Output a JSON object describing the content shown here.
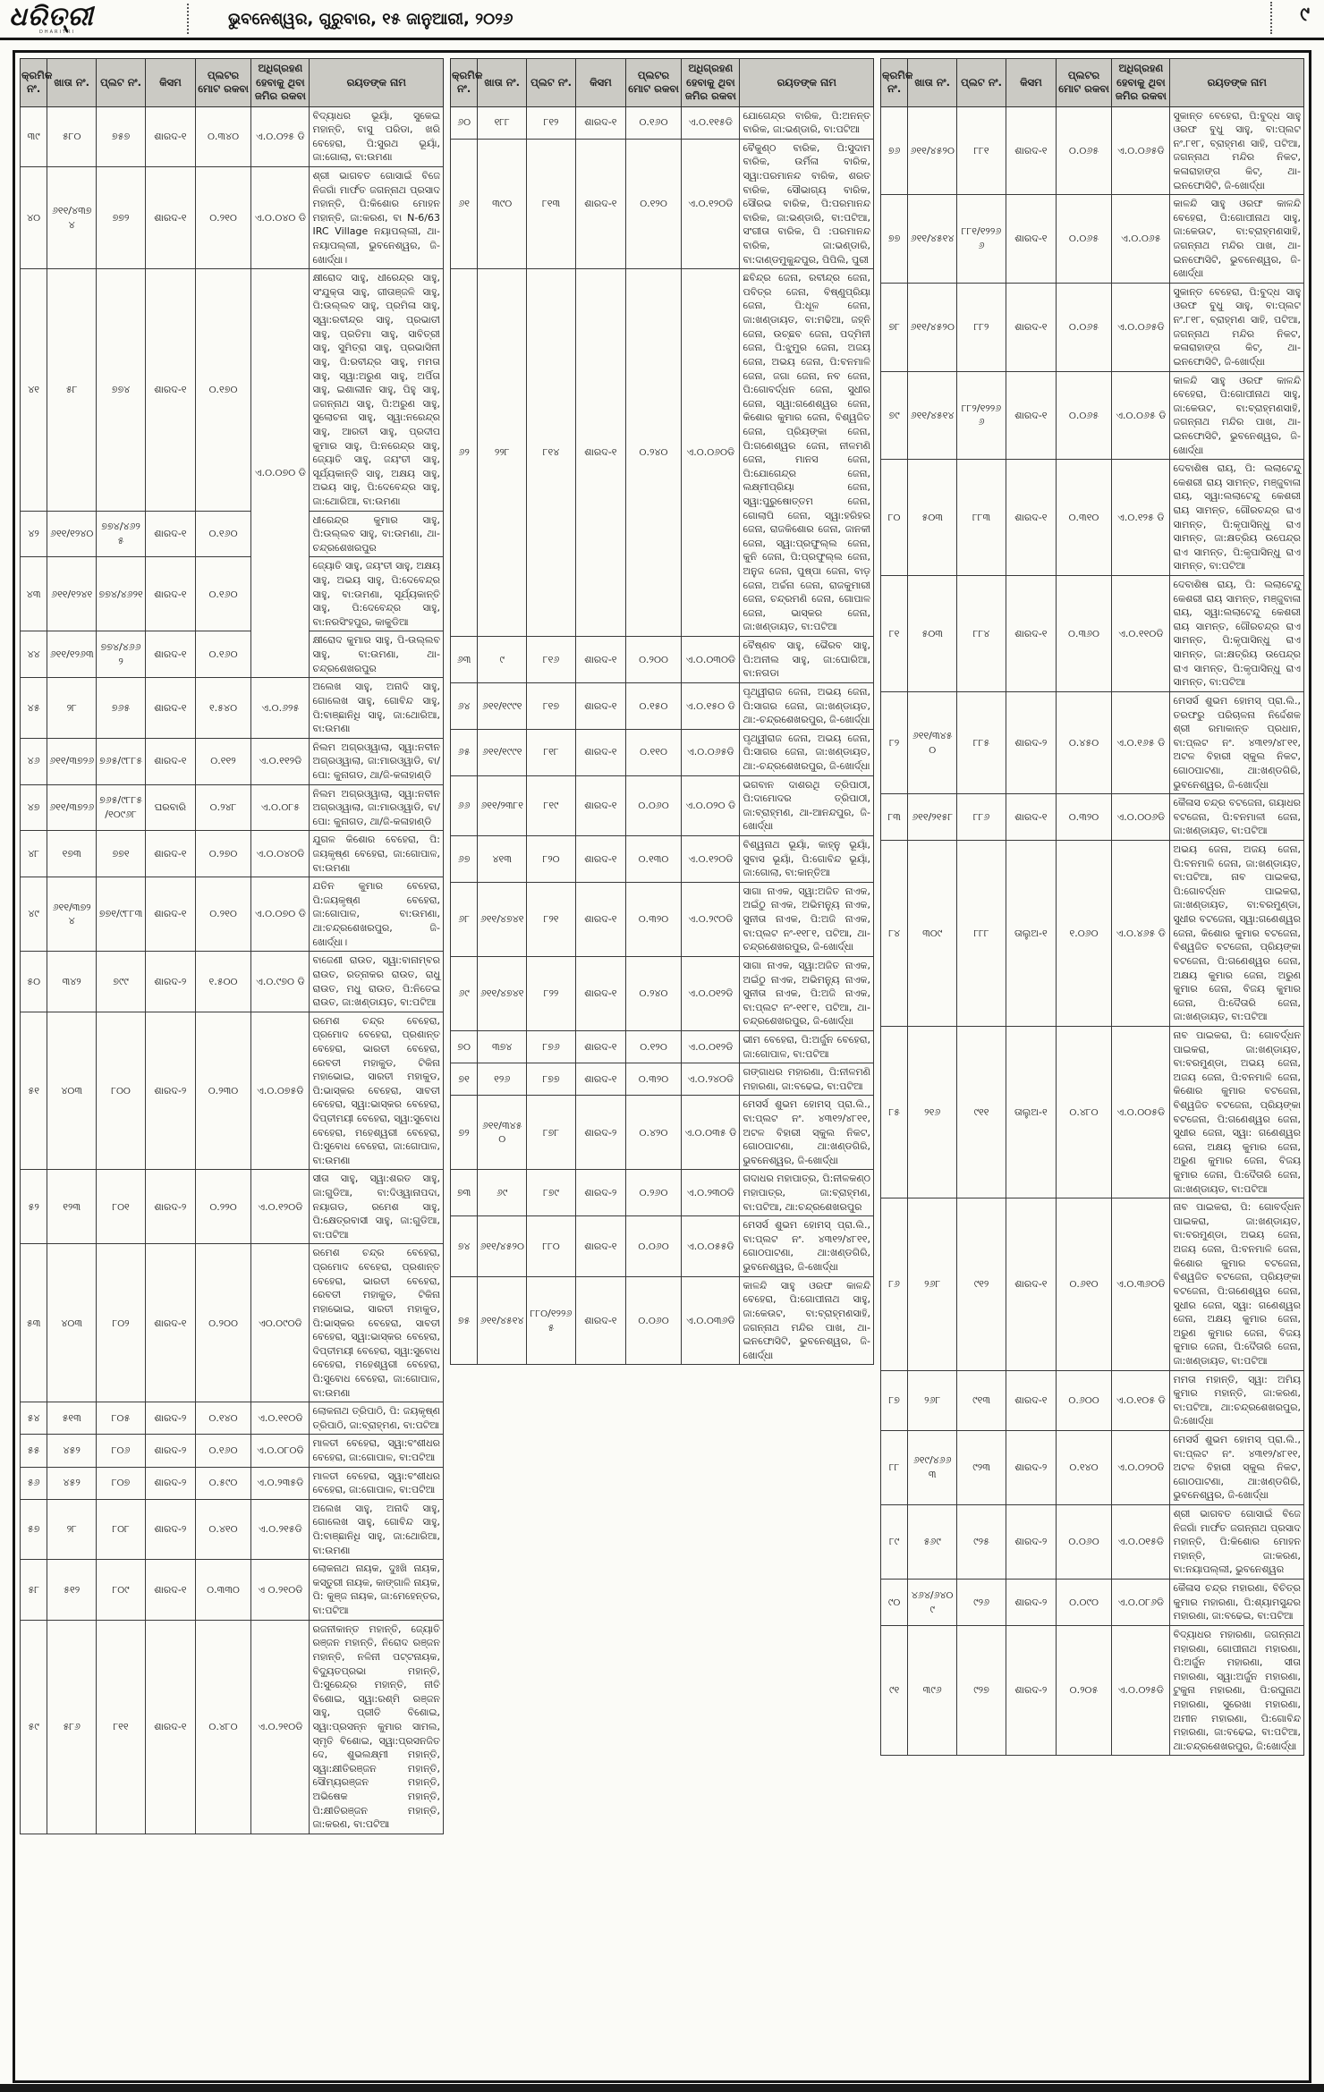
{
  "masthead": {
    "logo": "ଧରିତ୍ରୀ",
    "logo_subtitle": "DHARITRI",
    "dateline": "ଭୁବନେଶ୍ୱର, ଗୁରୁବାର, ୧୫ ଜାନୁଆରୀ, ୨୦୨୬",
    "page_number": "୯"
  },
  "notice_table": {
    "headers": [
      "କ୍ରମିକ ନଂ.",
      "ଖାତା ନଂ.",
      "ପ୍ଲଟ ନଂ.",
      "କିସମ",
      "ପ୍ଲଟର ମୋଟ ରକବା",
      "ଅଧିଗ୍ରହଣ ହେବାକୁ ଥିବା ଜମିର ରକବା",
      "ରୟତଙ୍କ ନାମ"
    ],
    "columns": [
      {
        "rows": [
          {
            "sl": "୩୯",
            "khata": "୫୮୦",
            "plot": "୭୫୭",
            "kisam": "ଶାରଦ-୧",
            "area": "୦.୩୪୦",
            "acq": "ଏ.୦.୦୨୫ ଡି",
            "name": "ବିଦ୍ୟାଧର ଭୂୟାଁ, ସୁକେଇ ମହାନ୍ତି, ବାସୁ ପରିଡା, ଖରି ବେହେରା, ପି:ସୁରଥ ଭୂୟାଁ, ଜା:ଗୋଲା, ବା:ଉମଣା"
          },
          {
            "sl": "୪୦",
            "khata": "୬୧୧/୪୩୭୪",
            "plot": "୭୭୨",
            "kisam": "ଶାରଦ-୧",
            "area": "୦.୨୧୦",
            "acq": "ଏ.୦.୦୪୦ ଡି",
            "name": "ଶ୍ରୀ ଭାଗବତ ଗୋସାଇଁ ବିଜେ ନିଜଗାଁ ମାର୍ଫତ ଜଗନ୍ନାଥ ପ୍ରସାଦ ମହାନ୍ତି, ପି:କିଶୋର ମୋହନ ମହାନ୍ତି, ଜା:କରଣ, ବା N-6/63 IRC Village ନୟାପଲ୍ଲୀ, ଥା-ନୟାପଲ୍ଲୀ, ଭୁବନେଶ୍ୱର, ଜି-ଖୋର୍ଦ୍ଧା।"
          },
          {
            "sl": "୪୧",
            "khata": "୫୮",
            "plot": "୭୭୪",
            "kisam": "ଶାରଦ-୧",
            "area": "୦.୧୭୦",
            "acq": "ଏ.୦.୦୭୦ ଡି",
            "acq_rowspan": 4,
            "name": "କ୍ଷୀରୋଦ ସାହୁ, ଧୀରେନ୍ଦ୍ର ସାହୁ, ସଂଯୁକ୍ତା ସାହୁ, ଗୀତାଞ୍ଜଳି ସାହୁ, ପି:ଉଲ୍ଲବ ସାହୁ, ପ୍ରମିଳା ସାହୁ, ସ୍ୱା:ରବୀନ୍ଦ୍ର ସାହୁ, ପ୍ରଭାତୀ ସାହୁ, ପ୍ରତିମା ସାହୁ, ସାବିତ୍ରୀ ସାହୁ, ସୁମିତ୍ରା ସାହୁ, ପ୍ରଭାସିନୀ ସାହୁ, ପି:ରବୀନ୍ଦ୍ର ସାହୁ, ମମତା ସାହୁ, ସ୍ୱା:ଅରୁଣ ସାହୁ, ଅର୍ପିତା ସାହୁ, ଇଶାଲୀନ ସାହୁ, ପିହୁ ସାହୁ, ଜଗନ୍ନାଥ ସାହୁ, ପି:ଅରୁଣ ସାହୁ, ସୁଲୋଚନା ସାହୁ, ସ୍ୱା:ନରେନ୍ଦ୍ର ସାହୁ, ଆରତୀ ସାହୁ, ପ୍ରଦୀପ କୁମାର ସାହୁ, ପି:ନରେନ୍ଦ୍ର ସାହୁ, ଜ୍ୟୋତି ସାହୁ, ଜୟଂତୀ ସାହୁ, ସୂର୍ଯ୍ୟକାନ୍ତି ସାହୁ, ଅକ୍ଷୟ ସାହୁ, ଅଭୟ ସାହୁ, ପି:ଦେବେନ୍ଦ୍ର ସାହୁ, ଜା:ଥୋରିଆ, ବା:ଉମଣା"
          },
          {
            "sl": "୪୨",
            "khata": "୬୧୧/୧୨୪୦",
            "plot": "୭୭୪/୪୬୨୫",
            "kisam": "ଶାରଦ-୧",
            "area": "୦.୧୬୦",
            "acq": null,
            "name": "ଧୀରେନ୍ଦ୍ର କୁମାର ସାହୁ, ପି:ଉଲ୍ଲବ ସାହୁ, ବା:ଉମଣା, ଥା-ଚନ୍ଦ୍ରଶେଖରପୁର"
          },
          {
            "sl": "୪୩",
            "khata": "୬୧୧/୧୨୪୧",
            "plot": "୭୭୪/୪୬୨୧",
            "kisam": "ଶାରଦ-୧",
            "area": "୦.୧୬୦",
            "acq": null,
            "name": "ଜ୍ୟୋତି ସାହୁ, ଜୟଂତୀ ସାହୁ, ଅକ୍ଷୟ ସାହୁ, ଅଭୟ ସାହୁ, ପି:ଦେବେନ୍ଦ୍ର ସାହୁ, ବା:ଉମଣା, ସୂର୍ଯ୍ୟକାନ୍ତି ସାହୁ, ପି:ଦେବେନ୍ଦ୍ର ସାହୁ, ବା:ନରସିଂହପୁର, କାକୁଡିଆ"
          },
          {
            "sl": "୪୪",
            "khata": "୬୧୧/୧୨୬୩",
            "plot": "୭୭୪/୪୬୬୨",
            "kisam": "ଶାରଦ-୧",
            "area": "୦.୧୬୦",
            "acq": null,
            "name": "କ୍ଷୀରୋଦ କୁମାର ସାହୁ, ପି-ଉଲ୍ଲବ ସାହୁ, ବା:ଉମଣା, ଥା-ଚନ୍ଦ୍ରଶେଖରପୁର"
          },
          {
            "sl": "୪୫",
            "khata": "୨୮",
            "plot": "୭୬୫",
            "kisam": "ଶାରଦ-୧",
            "area": "୧.୫୪୦",
            "acq": "ଏ.୦.୬୨୫",
            "name": "ଅଲେଖ ସାହୁ, ଅନାଦି ସାହୁ, ଗୋଲେଖ ସାହୁ, ଗୋବିନ୍ଦ ସାହୁ, ପି:ବାଞ୍ଛାନିଧି ସାହୁ, ଜା:ଥୋରିଆ, ବା:ଉମଣା"
          },
          {
            "sl": "୪୬",
            "khata": "୬୧୧/୩୭୨୬",
            "plot": "୭୬୫/୯୮୮୫",
            "kisam": "ଶାରଦ-୧",
            "area": "୦.୧୧୨",
            "acq": "ଏ.୦.୧୧୨ଡି",
            "name": "ନିଲମ ଅଗ୍ରଓ୍ୱାଲା, ସ୍ୱା:ନବୀନ ଅଗ୍ରଓ୍ୱାଲା, ଜା:ମାରଓ୍ୱାଡି, ବା/ପୋ: କୁନାଗଡ, ଥା/ଜି-କଳାହାଣ୍ଡି"
          },
          {
            "sl": "୪୭",
            "khata": "୬୧୧/୩୭୨୬",
            "plot": "୭୬୫/୯୮୮୫/୧୦୯୬୮",
            "kisam": "ଘରବାରି",
            "area": "୦.୨୪୮",
            "acq": "ଏ.୦.୦୮୫",
            "name": "ନିଲମ ଅଗ୍ରଓ୍ୱାଲା, ସ୍ୱା:ନବୀନ ଅଗ୍ରଓ୍ୱାଲା, ଜା:ମାରଓ୍ୱାଡି, ବା/ପୋ: କୁନାଗଡ, ଥା/ଜି-କଳାହାଣ୍ଡି"
          },
          {
            "sl": "୪୮",
            "khata": "୧୭୩",
            "plot": "୭୭୧",
            "kisam": "ଶାରଦ-୧",
            "area": "୦.୨୭୦",
            "acq": "ଏ.୦.୦୪୦ଡି",
            "name": "ଯୁଗଳ କିଶୋର ବେହେରା, ପି: ଜୟକୃଷ୍ଣ ବେହେରା, ଜା:ଗୋପାଳ, ବା:ଉମଣା"
          },
          {
            "sl": "୪୯",
            "khata": "୬୧୧/୩୭୨୪",
            "plot": "୭୭୧/୯୮୮୩",
            "kisam": "ଶାରଦ-୧",
            "area": "୦.୨୧୦",
            "acq": "ଏ.୦.୦୭୦ ଡି",
            "name": "ଯତିନ କୁମାର ବେହେରା, ପି:ଜୟକୃଷ୍ଣ ବେହେରା, ଜା:ଗୋପାଳ, ବା:ଉମଣା, ଥା:ଚନ୍ଦ୍ରଶେଖରପୁର, ଜି-ଖୋର୍ଦ୍ଧା।"
          },
          {
            "sl": "୫୦",
            "khata": "୩୪୨",
            "plot": "୭୯୯",
            "kisam": "ଶାରଦ-୨",
            "area": "୧.୫୦୦",
            "acq": "ଏ.୦.୯୭୦ ଡି",
            "name": "ବାଜେଣୀ ରାଉତ, ସ୍ୱା:ବାନାମ୍ବର ରାଉତ, ରତ୍ନାକର ରାଉତ, ରାଧୁ ରାଉତ, ମଧୁ ରାଉତ, ପି:ନିତେଇ ରାଉତ, ଜା:ଖଣ୍ଡାୟତ, ବା:ପଟିଆ"
          },
          {
            "sl": "୫୧",
            "khata": "୪୦୩",
            "plot": "୮୦୦",
            "kisam": "ଶାରଦ-୨",
            "area": "୦.୨୩୦",
            "acq": "ଏ.୦.୦୭୫ଡି",
            "name": "ରମେଶ ଚନ୍ଦ୍ର ବେହେରା, ପ୍ରମୋଦ ବେହେରା, ପ୍ରଶାନ୍ତ ବେହେରା, ଭାରତୀ ବେହେରା, ରେବତୀ ମହାକୁଡ, ଟିକିନା ମହାଭୋଇ, ସାରତୀ ମହାକୁଡ, ପି:ଭାସ୍କର ବେହେରା, ସାବତୀ ବେହେରା, ସ୍ୱା:ଭାସ୍କର ବେହେରା, ଦିପ୍ତୀମୟୀ ବେହେରା, ସ୍ୱା:ସୁବୋଧ ବେହେରା, ମହେଶ୍ୱରୀ ବେହେରା, ପି:ସୁବୋଧ ବେହେରା, ଜା:ଗୋପାଳ, ବା:ଉମଣା"
          },
          {
            "sl": "୫୨",
            "khata": "୧୨୩",
            "plot": "୮୦୧",
            "kisam": "ଶାରଦ-୨",
            "area": "୦.୨୨୦",
            "acq": "ଏ.୦.୧୨୦ଡି",
            "name": "ସୀତା ସାହୁ, ସ୍ୱା:ଶରତ ସାହୁ, ଜା:ଗୁଡିଆ, ବା:ଦିଓ୍ୱାନାପଦା, ନୟାଗଡ, ରମେଶ ସାହୁ, ପି:କ୍ଷେତ୍ରବାସୀ ସାହୁ, ଜା:ଗୁଡିଆ, ବା:ପଟିଆ"
          },
          {
            "sl": "୫୩",
            "khata": "୪୦୩",
            "plot": "୮୦୨",
            "kisam": "ଶାରଦ-୧",
            "area": "୦.୨୦୦",
            "acq": "ଏ୦.୦୯୦ଡି",
            "name": "ରମେଶ ଚନ୍ଦ୍ର ବେହେରା, ପ୍ରମୋଦ ବେହେରା, ପ୍ରଶାନ୍ତ ବେହେରା, ଭାରତୀ ବେହେରା, ରେବତୀ ମହାକୁଡ, ଟିକିନା ମହାଭୋଇ, ସାରତୀ ମହାକୁଡ, ପି:ଭାସ୍କର ବେହେରା, ସାବତୀ ବେହେରା, ସ୍ୱା:ଭାସ୍କର ବେହେରା, ଦିପ୍ତୀମୟୀ ବେହେରା, ସ୍ୱା:ସୁବୋଧ ବେହେରା, ମହେଶ୍ୱରୀ ବେହେରା, ପି:ସୁବୋଧ ବେହେରା, ଜା:ଗୋପାଳ, ବା:ଉମଣା"
          },
          {
            "sl": "୫୪",
            "khata": "୫୧୩",
            "plot": "୮୦୫",
            "kisam": "ଶାରଦ-୨",
            "area": "୦.୧୪୦",
            "acq": "ଏ.୦.୧୧୦ଡି",
            "name": "ଲୋକନାଥ ତ୍ରିପାଠି, ପି: ଜୟକୃଷ୍ଣ ତ୍ରିପାଠି, ଜା:ବ୍ରାହ୍ମଣ, ବା:ପଟିଆ"
          },
          {
            "sl": "୫୫",
            "khata": "୪୫୨",
            "plot": "୮୦୬",
            "kisam": "ଶାରଦ-୨",
            "area": "୦.୧୬୦",
            "acq": "ଏ.୦.୦୮୦ଡି",
            "name": "ମାଳତୀ ବେହେରା, ସ୍ୱା:ବଂଶୀଧର ବେହେରା, ଜା:ଗୋପାଳ, ବା:ପଟିଆ"
          },
          {
            "sl": "୫୬",
            "khata": "୪୫୨",
            "plot": "୮୦୭",
            "kisam": "ଶାରଦ-୨",
            "area": "୦.୫୯୦",
            "acq": "ଏ.୦.୨୩୫ଡି",
            "name": "ମାଳତୀ ବେହେରା, ସ୍ୱା:ବଂଶୀଧର ବେହେରା, ଜା:ଗୋପାଳ, ବା:ପଟିଆ"
          },
          {
            "sl": "୫୭",
            "khata": "୨୮",
            "plot": "୮୦୮",
            "kisam": "ଶାରଦ-୨",
            "area": "୦.୪୧୦",
            "acq": "ଏ.୦.୨୧୫ଡି",
            "name": "ଅଲେଖ ସାହୁ, ଅନାଦି ସାହୁ, ଗୋଲେଖ ସାହୁ, ଗୋବିନ୍ଦ ସାହୁ, ପି:ବାଞ୍ଛାନିଧି ସାହୁ, ଜା:ଥୋରିଆ, ବା:ଉମଣା"
          },
          {
            "sl": "୫୮",
            "khata": "୫୧୨",
            "plot": "୮୦୯",
            "kisam": "ଶାରଦ-୧",
            "area": "୦.୩୩୦",
            "acq": "ଏ ୦.୨୧୦ଡି",
            "name": "ଲୋକନାଥ ନାୟକ, ଦୁଃଖି ନାୟକ, କସ୍ତୁରୀ ନାୟକ, କାଙ୍ଗାଳି ନାୟକ, ପି: କୁଞ୍ଜ ନାୟକ, ଜା:ମେହେନ୍ତର, ବା:ପଟିଆ"
          },
          {
            "sl": "୫୯",
            "khata": "୫୮୬",
            "plot": "୮୧୧",
            "kisam": "ଶାରଦ-୧",
            "area": "୦.୪୮୦",
            "acq": "ଏ.୦.୨୧୦ଡି",
            "name": "ରଜନୀକାନ୍ତ ମହାନ୍ତି, ଜ୍ୟୋତି ରଞ୍ଜନ ମହାନ୍ତି, ନିରୋଦ ରଞ୍ଜନ ମହାନ୍ତି, ନଳିନୀ ପଟ୍ଟନାୟକ, ବିଦ୍ୟୁତପ୍ରଭା ମହାନ୍ତି, ପି:ସୁରେନ୍ଦ୍ର ମହାନ୍ତି, ନୀତି ବିଶୋଇ, ସ୍ୱା:ରଶ୍ମି ରଞ୍ଜନ ସାହୁ, ପ୍ରୀତି ବିଶୋଇ, ସ୍ୱା:ପ୍ରସନ୍ନ କୁମାର ସାମଲ, ସ୍ମୃତି ବିଶୋଇ, ସ୍ୱା:ପ୍ରସନଜିତ ଦେ, ଶୁଭଲକ୍ଷ୍ମୀ ମହାନ୍ତି, ସ୍ୱା:କ୍ଷୀତିରଞ୍ଜନ ମହାନ୍ତି, ସୌମ୍ୟରଞ୍ଜନ ମହାନ୍ତି, ଅଭିଷେକ ମହାନ୍ତି, ପି:କ୍ଷୀତିରଞ୍ଜନ ମହାନ୍ତି, ଜା:କରଣ, ବା:ପଟିଆ"
          }
        ]
      },
      {
        "rows": [
          {
            "sl": "୬୦",
            "khata": "୧୮୮",
            "plot": "୮୧୨",
            "kisam": "ଶାରଦ-୧",
            "area": "୦.୧୬୦",
            "acq": "ଏ.୦.୧୧୫ଡି",
            "name": "ଯୋଗେନ୍ଦ୍ର ବାରିକ, ପି:ଅନନ୍ତ ବାରିକ, ଜା:ଭଣ୍ଡାରି, ବା:ପଟିଆ"
          },
          {
            "sl": "୬୧",
            "khata": "୩୯୦",
            "plot": "୮୧୩",
            "kisam": "ଶାରଦ-୧",
            "area": "୦.୧୨୦",
            "acq": "ଏ.୦.୧୨୦ଡି",
            "name": "ବୈକୁଣ୍ଠ ବାରିକ, ପି:ସୁଦାମ ବାରିକ, ଉର୍ମିଳା ବାରିକ, ସ୍ୱା:ପରମାନନ୍ଦ ବାରିକ, ଶରତ ବାରିକ, ସୌଭାଗ୍ୟ ବାରିକ, ସୌରଭ ବାରିକ, ପି:ପରମାନନ୍ଦ ବାରିକ, ଜା:ଭଣ୍ଡାରି, ବା:ପଟିଆ, ସଂଗୀତା ବାରିକ, ପି :ପରମାନନ୍ଦ ବାରିକ, ଜା:ଭଣ୍ଡାରି, ବା:ଦାଣ୍ଡମୁକୁନ୍ଦପୁର, ପିପିଲି, ପୁରୀ"
          },
          {
            "sl": "୬୨",
            "khata": "୨୨୮",
            "plot": "୮୧୪",
            "kisam": "ଶାରଦ-୧",
            "area": "୦.୨୪୦",
            "acq": "ଏ.୦.୦୬୦ଡି",
            "name": "ଛବିନ୍ଦ୍ର ଜେନା, ରବୀନ୍ଦ୍ର ଜେନା, ପବିତ୍ର ଜେନା, ବିଷ୍ଣୁପ୍ରିୟା ଜେନା, ପି:ଧୂଳ ଜେନା, ଜା:ଖଣ୍ଡାୟତ, ବା:ମଢିଆ, ଜହ୍ନି ଜେନା, ଉଚ୍ଛବ ଜେନା, ପଦ୍ମିନୀ ଜେନା, ପି:ଝୁମୁର ଜେନା, ଅଜୟ ଜେନା, ଅଭୟ ଜେନା, ପି:ବନମାଳି ଜେନା, ଜଗା ଜେନା, ନବ ଜେନା, ପି:ଗୋବର୍ଦ୍ଧନ ଜେନା, ସୁଧୀର ଜେନା, ସ୍ୱା:ଗଣେଶ୍ୱର ଜେନା, କିଶୋର କୁମାର ଜେନା, ବିଶ୍ୱଜିତ ଜେନା, ପ୍ରିୟଙ୍କା ଜେନା, ପି:ଗଣେଶ୍ୱର ଜେନା, ନୀଳମଣି ଜେନା, ମାନସ ଜେନା, ପି:ଯୋଗେନ୍ଦ୍ର ଜେନା, ଲକ୍ଷ୍ମୀପ୍ରିୟା ଜେନା, ସ୍ୱା:ପୁରୁଷୋତ୍ତମ ଜେନା, ଗୋଲାପି ଜେନା, ସ୍ୱା:ହରିହର ଜେନା, ରାଜକିଶୋର ଜେନା, ଜାନକୀ ଜେନା, ସ୍ୱା:ପ୍ରଫୁଲ୍ଲ ଜେନା, କୁନି ଜେନା, ପି:ପ୍ରଫୁଲ୍ଲ ଜେନା, ଅନୁଜ ଜେନା, ପୁଷ୍ପା ଜେନା, ବାଡ଼ ଜେନା, ଅର୍ଚ୍ଚନା ଜେନା, ରାଜକୁମାରୀ ଜେନା, ଚନ୍ଦ୍ରମଣି ଜେନା, ଗୋପାଳ ଜେନା, ଭାସ୍କର ଜେନା, ଜା:ଖଣ୍ଡାୟତ, ବା:ପଟିଆ"
          },
          {
            "sl": "୬୩",
            "khata": "୯",
            "plot": "୮୧୬",
            "kisam": "ଶାରଦ-୧",
            "area": "୦.୨୦୦",
            "acq": "ଏ.୦.୦୩୦ଡି",
            "name": "ବୈଷ୍ଣବ ସାହୁ, ଭୈରବ ସାହୁ, ପି:ଅନୀଲ ସାହୁ, ଜା:ଘୋରିଆ, ବା:ନଗଡା"
          },
          {
            "sl": "୬୪",
            "khata": "୬୧୧/୧୯୯୧",
            "plot": "୮୧୭",
            "kisam": "ଶାରଦ-୧",
            "area": "୦.୧୫୦",
            "acq": "ଏ.୦.୧୫୦ ଡି",
            "name": "ପୃଥ୍ୱୀରାଜ ଜେନା, ଅଭୟ ଜେନା, ପି:ସାଗର ଜେନା, ଜା:ଖଣ୍ଡାୟତ, ଥା:-ଚନ୍ଦ୍ରଶେଖରପୁର, ଜି-ଖୋର୍ଦ୍ଧା"
          },
          {
            "sl": "୬୫",
            "khata": "୬୧୧/୧୯୯୧",
            "plot": "୮୧୮",
            "kisam": "ଶାରଦ-୧",
            "area": "୦.୧୧୦",
            "acq": "ଏ.୦.୦୬୫ଡି",
            "name": "ପୃଥ୍ୱୀରାଜ ଜେନା, ଅଭୟ ଜେନା, ପି:ସାଗର ଜେନା, ଜା:ଖଣ୍ଡାୟତ, ଥା:-ଚନ୍ଦ୍ରଶେଖରପୁର, ଜି-ଖୋର୍ଦ୍ଧା"
          },
          {
            "sl": "୬୬",
            "khata": "୬୧୧/୨୩୮୧",
            "plot": "୮୧୯",
            "kisam": "ଶାରଦ-୧",
            "area": "୦.୦୬୦",
            "acq": "ଏ.୦.୦୨୦ ଡି",
            "name": "ଭଗବାନ ଦାଶରଥି ତ୍ରିପାଠୀ, ପି:ଦାମୋଦର ତ୍ରିପାଠୀ, ଜା:ବ୍ରାହ୍ମଣ, ଥା-ଆନନ୍ଦପୁର, ଜି-ଖୋର୍ଦ୍ଧା"
          },
          {
            "sl": "୬୭",
            "khata": "୪୧୩",
            "plot": "୮୨୦",
            "kisam": "ଶାରଦ-୧",
            "area": "୦.୧୩୦",
            "acq": "ଏ.୦.୧୨୦ଡି",
            "name": "ବିଶ୍ୱନାଥ ଭୂୟାଁ, କାହ୍ନୁ ଭୂୟାଁ, ସୁବାସ ଭୂୟାଁ, ପି:ଗୋବିନ୍ଦ ଭୂୟାଁ, ଜା:ଗୋଲା, ବା:କାନ୍ତିଆ"
          },
          {
            "sl": "୬୮",
            "khata": "୬୧୧/୪୭୪୧",
            "plot": "୮୨୧",
            "kisam": "ଶାରଦ-୧",
            "area": "୦.୩୨୦",
            "acq": "ଏ.୦.୨୯୦ଡି",
            "name": "ସାଗା ନାଏକ, ସ୍ୱା:ଅଜିତ ନାଏକ, ଅଇଁଠୁ ନାଏକ, ଅଭିମନ୍ୟୁ ନାଏକ, ସୁନୀତା ନାଏକ, ପି:ଅଜି ନାଏକ, ବା:ପ୍ଲଟ ନଂ-୧୧୮୧, ପଟିଆ, ଥା-ଚନ୍ଦ୍ରଶେଖରପୁର, ଜି-ଖୋର୍ଦ୍ଧା"
          },
          {
            "sl": "୬୯",
            "khata": "୬୧୧/୪୭୪୧",
            "plot": "୮୨୨",
            "kisam": "ଶାରଦ-୧",
            "area": "୦.୨୪୦",
            "acq": "ଏ.୦.୦୧୨ଡି",
            "name": "ସାଗା ନାଏକ, ସ୍ୱା:ଅଜିତ ନାଏକ, ଅଇଁଠୁ ନାଏକ, ଅଭିମନ୍ୟୁ ନାଏକ, ସୁନୀତା ନାଏକ, ପି:ଅଜି ନାଏକ, ବା:ପ୍ଲଟ ନଂ-୧୧୮୧, ପଟିଆ, ଥା-ଚନ୍ଦ୍ରଶେଖରପୁର, ଜି-ଖୋର୍ଦ୍ଧା"
          },
          {
            "sl": "୭୦",
            "khata": "୩୭୪",
            "plot": "୮୭୬",
            "kisam": "ଶାରଦ-୧",
            "area": "୦.୧୨୦",
            "acq": "ଏ.୦.୦୧୨ଡି",
            "name": "ଭୀମ ବେହେରା, ପି:ଅର୍ଜୁନ ବେହେରା, ଜା:ଗୋପାଳ, ବା:ପଟିଆ"
          },
          {
            "sl": "୭୧",
            "khata": "୧୨୬",
            "plot": "୮୭୭",
            "kisam": "ଶାରଦ-୧",
            "area": "୦.୩୨୦",
            "acq": "ଏ.୦.୨୪୦ଡି",
            "name": "ଗଙ୍ଗାଧର ମହାରଣା, ପି:ନୀଳମଣି ମହାରଣା, ଜା:ବଢେଇ, ବା:ପଟିଆ"
          },
          {
            "sl": "୭୨",
            "khata": "୬୧୧/୩୪୫୦",
            "plot": "୮୭୮",
            "kisam": "ଶାରଦ-୨",
            "area": "୦.୪୨୦",
            "acq": "ଏ.୦.୦୩୫ ଡି",
            "name": "ମେସର୍ସ ଶୁଭମ ହୋମସ୍ ପ୍ରା.ଲି., ବା:ପ୍ଲଟ ନଂ. ୪୩୧୨/୪୮୧୧, ଅଟଳ ବିହାରୀ ସ୍କୁଲ ନିକଟ, ଗୋଠପାଟଣା, ଥା:ଖଣ୍ଡଗିରି, ଭୁବନେଶ୍ୱର, ଜି-ଖୋର୍ଦ୍ଧା"
          },
          {
            "sl": "୭୩",
            "khata": "୬୯",
            "plot": "୮୭୯",
            "kisam": "ଶାରଦ-୨",
            "area": "୦.୨୬୦",
            "acq": "ଏ.୦.୨୩୦ଡି",
            "name": "ଗଦାଧର ମହାପାତ୍ର, ପି:ନୀଳକଣ୍ଠ ମହାପାତ୍ର, ଜା:ବ୍ରାହ୍ମଣ, ବା:ପଟିଆ, ଥା:ଚନ୍ଦ୍ରଶେଖରପୁର"
          },
          {
            "sl": "୭୪",
            "khata": "୬୧୧/୪୫୨୦",
            "plot": "୮୮୦",
            "kisam": "ଶାରଦ-୧",
            "area": "୦.୦୬୦",
            "acq": "ଏ.୦.୦୫୫ଡି",
            "name": "ମେସର୍ସ ଶୁଭମ ହୋମସ୍ ପ୍ରା.ଲି., ବା:ପ୍ଲଟ ନଂ. ୪୩୧୨/୪୮୧୧, ଗୋଠପାଟଣା, ଥା:ଖଣ୍ଡଗିରି, ଭୁବନେଶ୍ୱର, ଜି-ଖୋର୍ଦ୍ଧା"
          },
          {
            "sl": "୭୫",
            "khata": "୬୧୧/୪୫୧୪",
            "plot": "୮୮୦/୧୨୨୬୫",
            "kisam": "ଶାରଦ-୧",
            "area": "୦.୦୬୦",
            "acq": "ଏ.୦.୦୩୬ଡି",
            "name": "କାଳନ୍ଦି ସାହୁ ଓରଫ କାଳନ୍ଦି ବେହେରା, ପି:ଗୋପୀନାଥ ସାହୁ, ଜା:କେଉଟ, ବା:ବ୍ରାହ୍ମଣସାହି, ଜଗନ୍ନାଥ ମନ୍ଦିର ପାଖ, ଥା-ଇନଫୋସିଟି, ଭୁବନେଶ୍ୱର, ଜି-ଖୋର୍ଦ୍ଧା"
          }
        ]
      },
      {
        "rows": [
          {
            "sl": "୭୬",
            "khata": "୬୧୧/୪୫୨୦",
            "plot": "୮୮୧",
            "kisam": "ଶାରଦ-୧",
            "area": "୦.୦୬୫",
            "acq": "ଏ.୦.୦୬୫ଡି",
            "name": "ସୁକାନ୍ତ ବେହେରା, ପି:ବୁଦ୍ଧ ସାହୁ ଓରଫ ବୁଧୁ ସାହୁ, ବା:ପ୍ଲଟ ନଂ.୮୧୮, ବ୍ରାହ୍ମଣ ସାହି, ପଟିଆ, ଜଗନ୍ନାଥ ମନ୍ଦିର ନିକଟ, କଳାରାହାଙ୍ଗ କିଟ୍, ଥା-ଇନଫୋସିଟି, ଜି-ଖୋର୍ଦ୍ଧା"
          },
          {
            "sl": "୭୭",
            "khata": "୬୧୧/୪୫୧୪",
            "plot": "୮୮୧/୧୨୨୬୬",
            "kisam": "ଶାରଦ-୧",
            "area": "୦.୦୬୫",
            "acq": "ଏ.୦.୦୬୫",
            "name": "କାଳନ୍ଦି ସାହୁ ଓରଫ କାଳନ୍ଦି ବେହେରା, ପି:ଗୋପୀନାଥ ସାହୁ, ଜା:କେଉଟ, ବା:ବ୍ରାହ୍ମଣସାହି, ଜଗନ୍ନାଥ ମନ୍ଦିର ପାଖ, ଥା-ଇନଫୋସିଟି, ଭୁବନେଶ୍ୱର, ଜି-ଖୋର୍ଦ୍ଧା"
          },
          {
            "sl": "୭୮",
            "khata": "୬୧୧/୪୫୨୦",
            "plot": "୮୮୨",
            "kisam": "ଶାରଦ-୧",
            "area": "୦.୦୬୫",
            "acq": "ଏ.୦.୦୬୫ଡି",
            "name": "ସୁକାନ୍ତ ବେହେରା, ପି:ବୁଦ୍ଧ ସାହୁ ଓରଫ ବୁଧୁ ସାହୁ, ବା:ପ୍ଲଟ ନଂ.୮୧୮, ବ୍ରାହ୍ମଣ ସାହି, ପଟିଆ, ଜଗନ୍ନାଥ ମନ୍ଦିର ନିକଟ, କଳାରାହାଙ୍ଗ କିଟ୍, ଥା-ଇନଫୋସିଟି, ଜି-ଖୋର୍ଦ୍ଧା"
          },
          {
            "sl": "୭୯",
            "khata": "୬୧୧/୪୫୧୪",
            "plot": "୮୮୨/୧୨୨୬୬",
            "kisam": "ଶାରଦ-୧",
            "area": "୦.୦୬୫",
            "acq": "ଏ.୦.୦୬୫ ଡି",
            "name": "କାଳନ୍ଦି ସାହୁ ଓରଫ କାଳନ୍ଦି ବେହେରା, ପି:ଗୋପୀନାଥ ସାହୁ, ଜା:କେଉଟ, ବା:ବ୍ରାହ୍ମଣସାହି, ଜଗନ୍ନାଥ ମନ୍ଦିର ପାଖ, ଥା-ଇନଫୋସିଟି, ଭୁବନେଶ୍ୱର, ଜି-ଖୋର୍ଦ୍ଧା"
          },
          {
            "sl": "୮୦",
            "khata": "୫୦୩",
            "plot": "୮୮୩",
            "kisam": "ଶାରଦ-୧",
            "area": "୦.୩୧୦",
            "acq": "ଏ.୦.୧୨୫ ଡି",
            "name": "ଦେବାଶିଷ ରାୟ, ପି: ଲଲାଟେନ୍ଦୁ କେଶରୀ ରାୟ ସାମନ୍ତ, ମଞ୍ଜୁବାଳା ରାୟ, ସ୍ୱା:ଲଲାଟେନ୍ଦୁ କେଶରୀ ରାୟ ସାମନ୍ତ, ଗୌରଚନ୍ଦ୍ର ରାଏ ସାମନ୍ତ, ପି:କୃପାସିନ୍ଧୁ ରାଏ ସାମନ୍ତ, ଜା:କ୍ଷତ୍ରିୟ ଉପେନ୍ଦ୍ର ରାଏ ସାମନ୍ତ, ପି:କୃପାସିନ୍ଧୁ ରାଏ ସାମନ୍ତ, ବା:ପଟିଆ"
          },
          {
            "sl": "୮୧",
            "khata": "୫୦୩",
            "plot": "୮୮୪",
            "kisam": "ଶାରଦ-୧",
            "area": "୦.୩୬୦",
            "acq": "ଏ.୦.୧୧୦ଡି",
            "name": "ଦେବାଶିଷ ରାୟ, ପି: ଲଲାଟେନ୍ଦୁ କେଶରୀ ରାୟ ସାମନ୍ତ, ମଞ୍ଜୁବାଳା ରାୟ, ସ୍ୱା:ଲଲାଟେନ୍ଦୁ କେଶରୀ ରାୟ ସାମନ୍ତ, ଗୌରଚନ୍ଦ୍ର ରାଏ ସାମନ୍ତ, ପି:କୃପାସିନ୍ଧୁ ରାଏ ସାମନ୍ତ, ଜା:କ୍ଷତ୍ରିୟ ଉପେନ୍ଦ୍ର ରାଏ ସାମନ୍ତ, ପି:କୃପାସିନ୍ଧୁ ରାଏ ସାମନ୍ତ, ବା:ପଟିଆ"
          },
          {
            "sl": "୮୨",
            "khata": "୬୧୧/୩୪୫୦",
            "plot": "୮୮୫",
            "kisam": "ଶାରଦ-୨",
            "area": "୦.୪୫୦",
            "acq": "ଏ.୦.୧୬୫ ଡି",
            "name": "ମେସର୍ସ ଶୁଭମ ହୋମସ୍ ପ୍ରା.ଲି., ତରଫରୁ ପରିଚାଳନା ନିର୍ଦ୍ଦେଶକ ଶ୍ରୀ ରମାକାନ୍ତ ପ୍ରଧାନ, ବା:ପ୍ଲଟ ନଂ. ୪୩୧୨/୪୮୧୧, ଅଟଳ ବିହାରୀ ସ୍କୁଲ ନିକଟ, ଗୋଠପାଟଣା, ଥା:ଖଣ୍ଡଗିରି, ଭୁବନେଶ୍ୱର, ଜି-ଖୋର୍ଦ୍ଧା"
          },
          {
            "sl": "୮୩",
            "khata": "୬୧୧/୨୧୫୮",
            "plot": "୮୮୬",
            "kisam": "ଶାରଦ-୧",
            "area": "୦.୩୨୦",
            "acq": "ଏ.୦.୦୦୬ଡି",
            "name": "କୈଳାସ ଚନ୍ଦ୍ର ବଟଜେନା, ଗୟାଧର ବଟଜେନା, ପି:ବନମାଳୀ ଜେନା, ଜା:ଖଣ୍ଡାୟତ, ବା:ପଟିଆ"
          },
          {
            "sl": "୮୪",
            "khata": "୩୦୯",
            "plot": "୮୮୮",
            "kisam": "ତାଲୁଅ-୧",
            "area": "୧.୦୬୦",
            "acq": "ଏ.୦.୪୬୫ ଡି",
            "name": "ଅଭୟ ଜେନା, ଅଜୟ ଜେନା, ପି:ବନମାଳି ଜେନା, ଜା:ଖଣ୍ଡାୟତ, ବା:ପଟିଆ, ନାବ ପାଇକରା, ପି:ଗୋବର୍ଦ୍ଧନ ପାଇକରା, ଜା:ଖଣ୍ଡାୟତ, ବା:ବରମୁଣ୍ଡା, ସୁଧୀର ବଟଜେନା, ସ୍ୱା:ଗଣେଶ୍ୱର ଜେନା, କିଶୋର କୁମାର ବଟଜେନା, ବିଶ୍ୱଜିତ ବଟଜେନା, ପ୍ରିୟଙ୍କା ବଟଜେନା, ପି:ଗଣେଶ୍ୱର ଜେନା, ଅକ୍ଷୟ କୁମାର ଜେନା, ଅରୁଣ କୁମାର ଜେନା, ବିଜୟ କୁମାର ଜେନା, ପି:ଦୈତାରି ଜେନା, ଜା:ଖଣ୍ଡାୟତ, ବା:ପଟିଆ"
          },
          {
            "sl": "୮୫",
            "khata": "୨୧୬",
            "plot": "୯୧୧",
            "kisam": "ତାଲୁଅ-୧",
            "area": "୦.୪୮୦",
            "acq": "ଏ.୦.୦୦୫ଡି",
            "name": "ନାବ ପାଇକରା, ପି: ଗୋବର୍ଦ୍ଧନ ପାଇକରା, ଜା:ଖଣ୍ଡାୟତ, ବା:ବରମୁଣ୍ଡା, ଅଭୟ ଜେନା, ଅଜୟ ଜେନା, ପି:ବନମାଳି ଜେନା, କିଶୋର କୁମାର ବଟଜେନା, ବିଶ୍ୱଜିତ ବଟଜେନା, ପ୍ରିୟଙ୍କା ବଟଜେନା, ପି:ଗଣେଶ୍ୱର ଜେନା, ସୁଧୀର ଜେନା, ସ୍ୱା: ଗଣେଶ୍ୱର ଜେନା, ଅକ୍ଷୟ କୁମାର ଜେନା, ଅରୁଣ କୁମାର ଜେନା, ବିଜୟ କୁମାର ଜେନା, ପି:ଦୈତାରି ଜେନା, ଜା:ଖଣ୍ଡାୟତ, ବା:ପଟିଆ"
          },
          {
            "sl": "୮୬",
            "khata": "୨୬୮",
            "plot": "୯୧୨",
            "kisam": "ଶାରଦ-୧",
            "area": "୦.୬୧୦",
            "acq": "ଏ.୦.୩୬୦ଡି",
            "name": "ନାବ ପାଇକରା, ପି: ଗୋବର୍ଦ୍ଧନ ପାଇକରା, ଜା:ଖଣ୍ଡାୟତ, ବା:ବରମୁଣ୍ଡା, ଅଭୟ ଜେନା, ଅଜୟ ଜେନା, ପି:ବନମାଳି ଜେନା, କିଶୋର କୁମାର ବଟଜେନା, ବିଶ୍ୱଜିତ ବଟଜେନା, ପ୍ରିୟଙ୍କା ବଟଜେନା, ପି:ଗଣେଶ୍ୱର ଜେନା, ସୁଧୀର ଜେନା, ସ୍ୱା: ଗଣେଶ୍ୱର ଜେନା, ଅକ୍ଷୟ କୁମାର ଜେନା, ଅରୁଣ କୁମାର ଜେନା, ବିଜୟ କୁମାର ଜେନା, ପି:ଦୈତାରି ଜେନା, ଜା:ଖଣ୍ଡାୟତ, ବା:ପଟିଆ"
          },
          {
            "sl": "୮୭",
            "khata": "୨୬୮",
            "plot": "୯୧୩",
            "kisam": "ଶାରଦ-୧",
            "area": "୦.୬୦୦",
            "acq": "ଏ.୦.୧୦୫ ଡି",
            "name": "ମମତା ମହାନ୍ତି, ସ୍ୱା: ଅମିୟ କୁମାର ମହାନ୍ତି, ଜା:କରଣ, ବା:ପଟିଆ, ଥା:ଚନ୍ଦ୍ରଶେଖରପୁର, ଜି:ଖୋର୍ଦ୍ଧା"
          },
          {
            "sl": "୮୮",
            "khata": "୬୧୯/୪୬୬୩",
            "plot": "୯୨୩",
            "kisam": "ଶାରଦ-୨",
            "area": "୦.୧୪୦",
            "acq": "ଏ.୦.୦୨୦ଡି",
            "name": "ମେସର୍ସ ଶୁଭମ ହୋମସ୍ ପ୍ରା.ଲି., ବା:ପ୍ଲଟ ନଂ. ୪୩୧୨/୪୮୧୧, ଅଟଳ ବିହାରୀ ସ୍କୁଲ ନିକଟ, ଗୋଠପାଟଣା, ଥା:ଖଣ୍ଡଗିରି, ଭୁବନେଶ୍ୱର, ଜି-ଖୋର୍ଦ୍ଧା"
          },
          {
            "sl": "୮୯",
            "khata": "୫୬୯",
            "plot": "୯୨୫",
            "kisam": "ଶାରଦ-୨",
            "area": "୦.୦୬୦",
            "acq": "ଏ.୦.୦୧୫ଡି",
            "name": "ଶ୍ରୀ ଭାଗବତ ଗୋସାଇଁ ବିଜେ ନିଜଗାଁ ମାର୍ଫତ ଜଗନ୍ନାଥ ପ୍ରସାଦ ମହାନ୍ତି, ପି:କିଶୋର ମୋହନ ମହାନ୍ତି, ଜା:କରଣ, ବା:ନୟାପଲ୍ଲୀ, ଭୁବନେଶ୍ୱର"
          },
          {
            "sl": "୯୦",
            "khata": "୪୬୪/୬୪୦୯",
            "plot": "୯୨୬",
            "kisam": "ଶାରଦ-୨",
            "area": "୦.୦୯୦",
            "acq": "ଏ.୦.୦୮୬ଡି",
            "name": "କୈଳାସ ଚନ୍ଦ୍ର ମହାରଣା, ବିଚିତ୍ର କୁମାର ମହାରଣା, ପି:ଶ୍ୟାମସୁନ୍ଦର ମହାରଣା, ଜା:ବଢେଇ, ବା:ପଟିଆ"
          },
          {
            "sl": "୯୧",
            "khata": "୩୯୬",
            "plot": "୯୨୭",
            "kisam": "ଶାରଦ-୨",
            "area": "୦.୨୦୫",
            "acq": "ଏ.୦.୦୨୫ଡି",
            "name": "ବିଦ୍ୟାଧର ମହାରଣା, ଜଗନ୍ନାଥ ମହାରଣା, ଗୋପୀନାଥ ମହାରଣା, ପି:ଅର୍ଜୁନ ମହାରଣା, ସୀତା ମହାରଣା, ସ୍ୱା:ଅର୍ଜୁନ ମହାରଣା, ଟୁକୁନା ମହାରଣା, ପି:ରଘୁନାଥ ମହାରଣା, ସୁରେଖା ମହାରଣା, ଅମୀନ ମହାରଣା, ପି:ଗୋବିନ୍ଦ ମହାରଣା, ଜା:ବଢେଇ, ବା:ପଟିଆ, ଥା:ଚନ୍ଦ୍ରଶେଖରପୁର, ଜି:ଖୋର୍ଦ୍ଧା"
          }
        ]
      }
    ]
  }
}
